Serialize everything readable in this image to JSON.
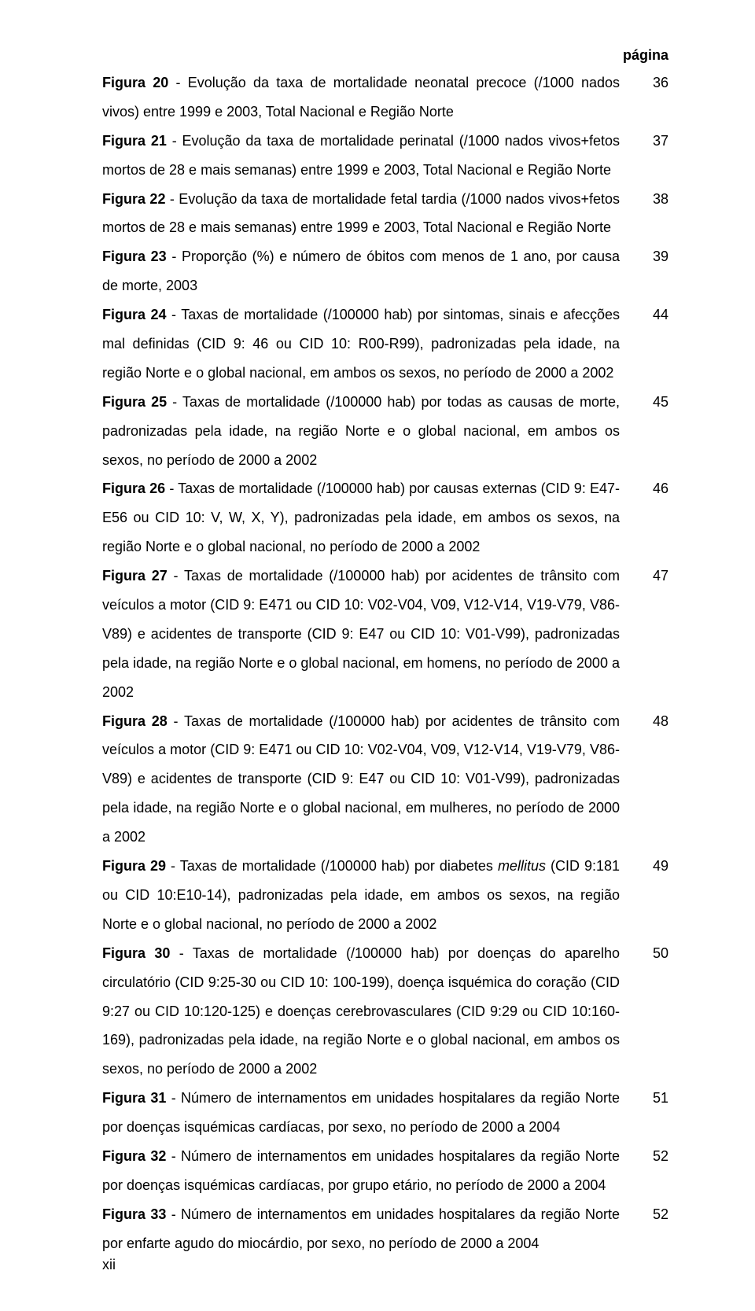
{
  "header": {
    "label": "página"
  },
  "entries": [
    {
      "prefix": "Figura 20",
      "body": " - Evolução da taxa de mortalidade neonatal precoce (/1000 nados vivos) entre 1999 e 2003, Total Nacional e Região Norte",
      "page": "36"
    },
    {
      "prefix": "Figura 21",
      "body": " - Evolução da taxa de mortalidade perinatal (/1000 nados vivos+fetos mortos de 28 e mais semanas) entre 1999 e 2003, Total Nacional e Região Norte",
      "page": "37"
    },
    {
      "prefix": "Figura 22",
      "body": " - Evolução da taxa de mortalidade fetal tardia (/1000 nados vivos+fetos mortos de 28 e mais semanas) entre 1999 e 2003, Total Nacional e Região Norte",
      "page": "38"
    },
    {
      "prefix": "Figura 23",
      "body": " - Proporção (%) e número de óbitos com menos de 1 ano, por causa de morte, 2003",
      "page": "39"
    },
    {
      "prefix": "Figura 24",
      "body": " - Taxas de mortalidade (/100000 hab) por sintomas, sinais e afecções mal definidas (CID 9: 46 ou CID 10: R00-R99), padronizadas pela idade, na região Norte e o global nacional, em ambos os sexos, no período de 2000 a 2002",
      "page": "44"
    },
    {
      "prefix": "Figura 25",
      "body": " - Taxas de mortalidade (/100000 hab) por todas as causas de morte, padronizadas pela idade, na região Norte e o global nacional, em ambos os sexos, no período de 2000 a 2002",
      "page": "45"
    },
    {
      "prefix": "Figura 26",
      "body": " - Taxas de mortalidade (/100000 hab) por causas externas (CID 9: E47-E56 ou CID 10: V, W, X, Y), padronizadas pela idade, em ambos os sexos, na região Norte e o global nacional, no período de 2000 a 2002",
      "page": "46"
    },
    {
      "prefix": "Figura 27",
      "body": " - Taxas de mortalidade (/100000 hab) por acidentes de trânsito com veículos a motor (CID 9: E471 ou CID 10: V02-V04, V09, V12-V14, V19-V79, V86-V89) e acidentes de transporte (CID 9: E47 ou CID 10: V01-V99), padronizadas pela idade, na região Norte e o global nacional, em homens, no período de 2000 a 2002",
      "page": "47"
    },
    {
      "prefix": "Figura 28",
      "body": " - Taxas de mortalidade (/100000 hab) por acidentes de trânsito com veículos a motor (CID 9: E471 ou CID 10: V02-V04, V09, V12-V14, V19-V79, V86-V89) e acidentes de transporte (CID 9: E47 ou CID 10: V01-V99), padronizadas pela idade, na região Norte e o global nacional, em mulheres, no período de 2000 a 2002",
      "page": "48"
    },
    {
      "prefix": "Figura 29",
      "body_pre": " - Taxas de mortalidade (/100000 hab) por diabetes ",
      "body_italic": "mellitus",
      "body_post": " (CID 9:181 ou CID 10:E10-14), padronizadas pela idade, em ambos os sexos, na região Norte e o global nacional, no período de 2000 a 2002",
      "page": "49"
    },
    {
      "prefix": "Figura 30",
      "body": " - Taxas de mortalidade (/100000 hab) por doenças do aparelho circulatório (CID 9:25-30 ou CID 10: 100-199), doença isquémica do coração (CID 9:27 ou CID 10:120-125) e doenças cerebrovasculares (CID 9:29 ou CID 10:160-169), padronizadas pela idade, na região Norte e o global nacional, em ambos os sexos, no período de 2000 a 2002",
      "page": "50"
    },
    {
      "prefix": "Figura 31",
      "body": " - Número de internamentos em unidades hospitalares da região Norte por doenças isquémicas cardíacas, por sexo, no período de 2000 a 2004",
      "page": "51"
    },
    {
      "prefix": "Figura 32",
      "body": " - Número de internamentos em unidades hospitalares da região Norte por doenças isquémicas cardíacas, por grupo etário, no período de 2000 a 2004",
      "page": "52"
    },
    {
      "prefix": "Figura 33",
      "body": " - Número de internamentos em unidades hospitalares da região Norte por enfarte agudo do miocárdio, por sexo, no período de 2000 a 2004",
      "page": "52"
    }
  ],
  "footer": {
    "label": "xii"
  }
}
